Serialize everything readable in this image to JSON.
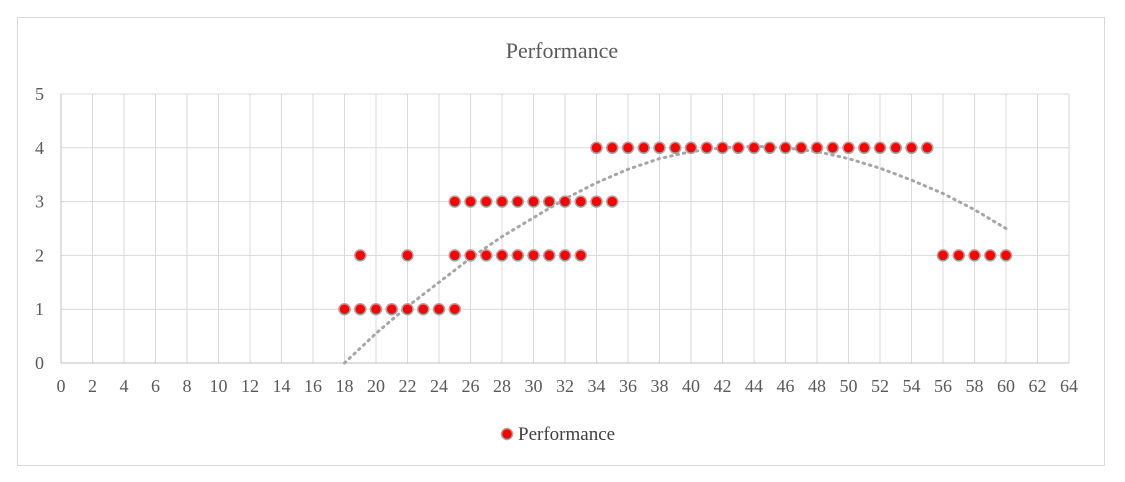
{
  "chart_data": {
    "type": "scatter",
    "title": "Performance",
    "xlabel": "",
    "ylabel": "",
    "xlim": [
      0,
      64
    ],
    "ylim": [
      0,
      5
    ],
    "x_ticks": [
      "0",
      "2",
      "4",
      "6",
      "8",
      "10",
      "12",
      "14",
      "16",
      "18",
      "20",
      "22",
      "24",
      "26",
      "28",
      "30",
      "32",
      "34",
      "36",
      "38",
      "40",
      "42",
      "44",
      "46",
      "48",
      "50",
      "52",
      "54",
      "56",
      "58",
      "60",
      "62",
      "64"
    ],
    "y_ticks": [
      "0",
      "1",
      "2",
      "3",
      "4",
      "5"
    ],
    "grid": true,
    "legend": "bottom",
    "series": [
      {
        "name": "Performance",
        "marker_color": "#ff0000",
        "marker_edge": "#a6a6a6",
        "points": [
          [
            18,
            1
          ],
          [
            19,
            1
          ],
          [
            20,
            1
          ],
          [
            21,
            1
          ],
          [
            22,
            1
          ],
          [
            23,
            1
          ],
          [
            24,
            1
          ],
          [
            25,
            1
          ],
          [
            19,
            2
          ],
          [
            22,
            2
          ],
          [
            25,
            2
          ],
          [
            26,
            2
          ],
          [
            27,
            2
          ],
          [
            28,
            2
          ],
          [
            29,
            2
          ],
          [
            30,
            2
          ],
          [
            31,
            2
          ],
          [
            32,
            2
          ],
          [
            33,
            2
          ],
          [
            25,
            3
          ],
          [
            26,
            3
          ],
          [
            27,
            3
          ],
          [
            28,
            3
          ],
          [
            29,
            3
          ],
          [
            30,
            3
          ],
          [
            31,
            3
          ],
          [
            32,
            3
          ],
          [
            33,
            3
          ],
          [
            34,
            3
          ],
          [
            35,
            3
          ],
          [
            34,
            4
          ],
          [
            35,
            4
          ],
          [
            36,
            4
          ],
          [
            37,
            4
          ],
          [
            38,
            4
          ],
          [
            39,
            4
          ],
          [
            40,
            4
          ],
          [
            41,
            4
          ],
          [
            42,
            4
          ],
          [
            43,
            4
          ],
          [
            44,
            4
          ],
          [
            45,
            4
          ],
          [
            46,
            4
          ],
          [
            47,
            4
          ],
          [
            48,
            4
          ],
          [
            49,
            4
          ],
          [
            50,
            4
          ],
          [
            51,
            4
          ],
          [
            52,
            4
          ],
          [
            53,
            4
          ],
          [
            54,
            4
          ],
          [
            55,
            4
          ],
          [
            56,
            2
          ],
          [
            57,
            2
          ],
          [
            58,
            2
          ],
          [
            59,
            2
          ],
          [
            60,
            2
          ]
        ]
      }
    ],
    "trendline": {
      "type": "polynomial",
      "color": "#a6a6a6",
      "x_range": [
        18,
        60
      ],
      "points": [
        [
          18,
          0
        ],
        [
          20,
          0.55
        ],
        [
          22,
          1.05
        ],
        [
          24,
          1.5
        ],
        [
          26,
          1.95
        ],
        [
          28,
          2.35
        ],
        [
          30,
          2.7
        ],
        [
          32,
          3.05
        ],
        [
          34,
          3.35
        ],
        [
          36,
          3.6
        ],
        [
          38,
          3.8
        ],
        [
          40,
          3.93
        ],
        [
          42,
          4.0
        ],
        [
          44,
          4.03
        ],
        [
          46,
          4.0
        ],
        [
          48,
          3.93
        ],
        [
          50,
          3.8
        ],
        [
          52,
          3.62
        ],
        [
          54,
          3.4
        ],
        [
          56,
          3.15
        ],
        [
          58,
          2.85
        ],
        [
          60,
          2.5
        ]
      ]
    }
  }
}
